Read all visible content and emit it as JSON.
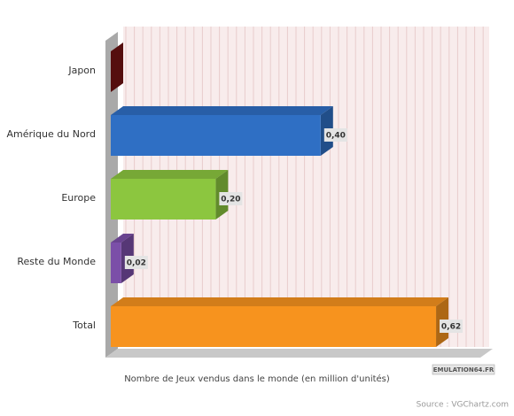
{
  "chart_data": {
    "type": "bar3d-horizontal",
    "categories": [
      "Japon",
      "Amérique du Nord",
      "Europe",
      "Reste du Monde",
      "Total"
    ],
    "values": [
      0,
      0.4,
      0.2,
      0.02,
      0.62
    ],
    "value_labels": [
      null,
      "0,40",
      "0,20",
      "0,02",
      "0,62"
    ],
    "colors": [
      "#7a1414",
      "#2f6fc4",
      "#8cc63f",
      "#7b4fa8",
      "#f7931e"
    ],
    "xlim": [
      0,
      0.7
    ],
    "x_label": "Nombre de Jeux vendus dans le monde (en million d'unités)",
    "watermark": "EMULATION64.FR",
    "source": "Source : VGChartz.com"
  }
}
